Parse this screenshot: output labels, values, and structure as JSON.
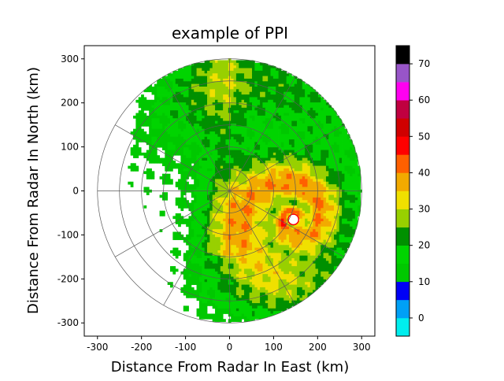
{
  "chart_data": {
    "type": "heatmap",
    "title": "example of PPI",
    "xlabel": "Distance From Radar In East (km)",
    "ylabel": "Distance From Radar In North (km)",
    "xlim": [
      -330,
      330
    ],
    "ylim": [
      -330,
      330
    ],
    "xticks": [
      -300,
      -200,
      -100,
      0,
      100,
      200,
      300
    ],
    "yticks": [
      300,
      200,
      100,
      0,
      -100,
      -200,
      -300
    ],
    "range_rings_km": [
      50,
      100,
      150,
      200,
      250,
      300
    ],
    "azimuth_spokes_deg": [
      0,
      30,
      60,
      90,
      120,
      150,
      180,
      210,
      240,
      270,
      300,
      330
    ],
    "colorbar": {
      "min": -5,
      "max": 75,
      "step": 5,
      "ticks": [
        0,
        10,
        20,
        30,
        40,
        50,
        60,
        70
      ],
      "colors": [
        "#00eeee",
        "#00a0f6",
        "#0000f6",
        "#00c800",
        "#00d400",
        "#009000",
        "#98d000",
        "#f0e000",
        "#f2aa00",
        "#ff6000",
        "#ff0000",
        "#d00000",
        "#c00040",
        "#ff00f0",
        "#9855c8",
        "#000000"
      ]
    },
    "features": {
      "eye_center_km": [
        145,
        -65
      ],
      "eye_radius_km": 12
    }
  }
}
